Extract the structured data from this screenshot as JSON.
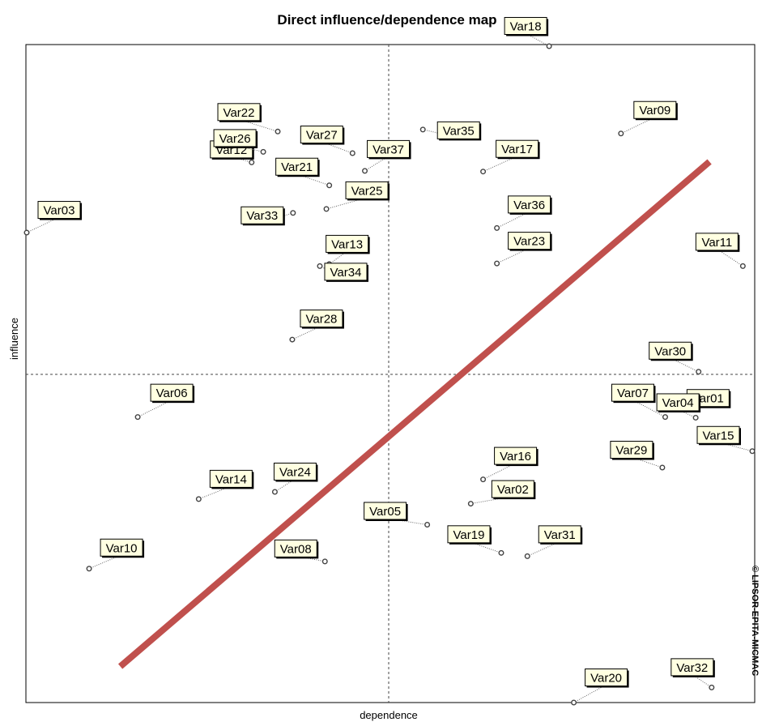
{
  "chart_data": {
    "type": "scatter",
    "title": "Direct influence/dependence map",
    "xlabel": "dependence",
    "ylabel": "influence",
    "watermark": "© LIPSOR-EPITA-MICMAC",
    "colors": {
      "background": "#ffffff",
      "point": "#444444",
      "label_fill": "#ffffe1",
      "trend_line": "#c0504d"
    },
    "grid": false,
    "quadrant_divider_lines": true,
    "trend_line": {
      "from": [
        12.9,
        5.5
      ],
      "to": [
        94.1,
        82.4
      ]
    },
    "points": [
      {
        "name": "Var01",
        "x": 91.0,
        "y": 45.9
      },
      {
        "name": "Var02",
        "x": 61.2,
        "y": 30.3
      },
      {
        "name": "Var03",
        "x": 0.0,
        "y": 71.6
      },
      {
        "name": "Var04",
        "x": 92.2,
        "y": 43.4
      },
      {
        "name": "Var05",
        "x": 55.2,
        "y": 27.1
      },
      {
        "name": "Var06",
        "x": 15.3,
        "y": 43.5
      },
      {
        "name": "Var07",
        "x": 88.0,
        "y": 43.5
      },
      {
        "name": "Var08",
        "x": 41.1,
        "y": 21.5
      },
      {
        "name": "Var09",
        "x": 81.9,
        "y": 86.7
      },
      {
        "name": "Var10",
        "x": 8.6,
        "y": 20.4
      },
      {
        "name": "Var11",
        "x": 98.7,
        "y": 66.5
      },
      {
        "name": "Var12",
        "x": 31.0,
        "y": 82.3
      },
      {
        "name": "Var13",
        "x": 41.7,
        "y": 66.8
      },
      {
        "name": "Var14",
        "x": 23.7,
        "y": 31.0
      },
      {
        "name": "Var15",
        "x": 100.0,
        "y": 38.3
      },
      {
        "name": "Var16",
        "x": 62.9,
        "y": 34.0
      },
      {
        "name": "Var17",
        "x": 62.9,
        "y": 80.9
      },
      {
        "name": "Var18",
        "x": 72.0,
        "y": 100.0
      },
      {
        "name": "Var19",
        "x": 65.4,
        "y": 22.8
      },
      {
        "name": "Var20",
        "x": 75.4,
        "y": 0.0
      },
      {
        "name": "Var21",
        "x": 41.7,
        "y": 78.8
      },
      {
        "name": "Var22",
        "x": 34.6,
        "y": 87.0
      },
      {
        "name": "Var23",
        "x": 64.8,
        "y": 66.9
      },
      {
        "name": "Var24",
        "x": 34.2,
        "y": 32.1
      },
      {
        "name": "Var25",
        "x": 41.3,
        "y": 75.2
      },
      {
        "name": "Var26",
        "x": 32.6,
        "y": 83.9
      },
      {
        "name": "Var27",
        "x": 44.9,
        "y": 83.7
      },
      {
        "name": "Var28",
        "x": 36.6,
        "y": 55.3
      },
      {
        "name": "Var29",
        "x": 87.6,
        "y": 35.8
      },
      {
        "name": "Var30",
        "x": 92.6,
        "y": 50.4
      },
      {
        "name": "Var31",
        "x": 69.0,
        "y": 22.3
      },
      {
        "name": "Var32",
        "x": 94.4,
        "y": 2.3
      },
      {
        "name": "Var33",
        "x": 36.7,
        "y": 74.6
      },
      {
        "name": "Var34",
        "x": 40.4,
        "y": 66.5
      },
      {
        "name": "Var35",
        "x": 54.6,
        "y": 87.3
      },
      {
        "name": "Var36",
        "x": 64.8,
        "y": 72.3
      },
      {
        "name": "Var37",
        "x": 46.6,
        "y": 81.0
      }
    ]
  }
}
